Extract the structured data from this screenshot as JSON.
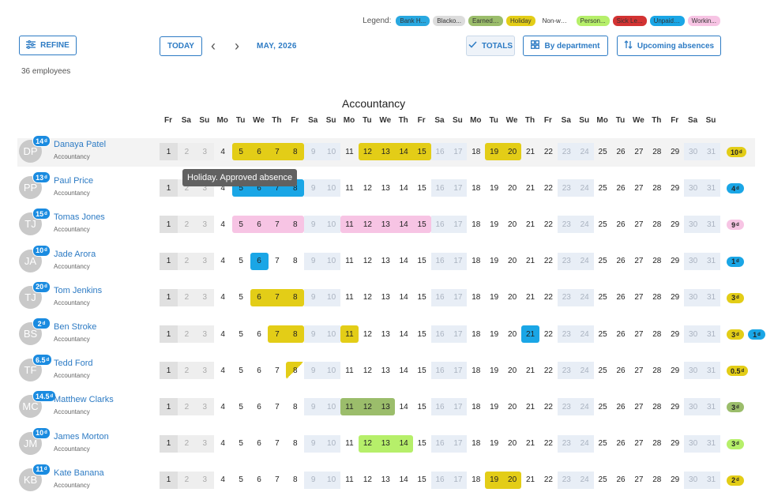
{
  "legend": {
    "label": "Legend:",
    "items": [
      {
        "label": "Bank H...",
        "color": "#29a8e0"
      },
      {
        "label": "Blacko...",
        "color": "#dcdcdc"
      },
      {
        "label": "Earned ...",
        "color": "#9bbd6b"
      },
      {
        "label": "Holiday",
        "color": "#e3cd17"
      },
      {
        "label": "Non-wo...",
        "color": "#ffffff"
      },
      {
        "label": "Person...",
        "color": "#b6ef6a"
      },
      {
        "label": "Sick Le...",
        "color": "#d33333"
      },
      {
        "label": "Unpaid ...",
        "color": "#1aa6e6"
      },
      {
        "label": "Workin...",
        "color": "#f7c4e4"
      }
    ]
  },
  "toolbar": {
    "refine": "REFINE",
    "today": "TODAY",
    "month": "MAY, 2026",
    "totals": "TOTALS",
    "by_department": "By department",
    "upcoming": "Upcoming absences"
  },
  "employee_count": "36 employees",
  "department": "Accountancy",
  "weekdays": [
    "Fr",
    "Sa",
    "Su",
    "Mo",
    "Tu",
    "We",
    "Th",
    "Fr",
    "Sa",
    "Su",
    "Mo",
    "Tu",
    "We",
    "Th",
    "Fr",
    "Sa",
    "Su",
    "Mo",
    "Tu",
    "We",
    "Th",
    "Fr",
    "Sa",
    "Su",
    "Mo",
    "Tu",
    "We",
    "Th",
    "Fr",
    "Sa",
    "Su"
  ],
  "tooltip": "Holiday. Approved absence",
  "colors": {
    "holiday": "#e3cd17",
    "unpaid": "#1aa6e6",
    "working": "#f7c4e4",
    "earned": "#9bbd6b",
    "personal": "#b6ef6a"
  },
  "employees": [
    {
      "initials": "DP",
      "name": "Danaya Patel",
      "dept": "Accountancy",
      "badge": "14",
      "badge_unit": "d",
      "absences": [
        {
          "days": [
            5,
            6,
            7,
            8
          ],
          "type": "holiday"
        },
        {
          "days": [
            12,
            13,
            14,
            15
          ],
          "type": "holiday"
        },
        {
          "days": [
            19,
            20
          ],
          "type": "holiday"
        }
      ],
      "totals": [
        {
          "value": "10",
          "unit": "d",
          "type": "holiday"
        }
      ]
    },
    {
      "initials": "PP",
      "name": "Paul Price",
      "dept": "Accountancy",
      "badge": "13",
      "badge_unit": "d",
      "absences": [
        {
          "days": [
            5,
            6,
            7,
            8
          ],
          "type": "unpaid"
        }
      ],
      "totals": [
        {
          "value": "4",
          "unit": "d",
          "type": "unpaid"
        }
      ]
    },
    {
      "initials": "TJ",
      "name": "Tomas Jones",
      "dept": "Accountancy",
      "badge": "15",
      "badge_unit": "d",
      "absences": [
        {
          "days": [
            5,
            6,
            7,
            8
          ],
          "type": "working"
        },
        {
          "days": [
            11,
            12,
            13,
            14,
            15
          ],
          "type": "working"
        }
      ],
      "totals": [
        {
          "value": "9",
          "unit": "d",
          "type": "working"
        }
      ]
    },
    {
      "initials": "JA",
      "name": "Jade Arora",
      "dept": "Accountancy",
      "badge": "10",
      "badge_unit": "d",
      "absences": [
        {
          "days": [
            6
          ],
          "type": "unpaid"
        }
      ],
      "totals": [
        {
          "value": "1",
          "unit": "d",
          "type": "unpaid"
        }
      ]
    },
    {
      "initials": "TJ",
      "name": "Tom Jenkins",
      "dept": "Accountancy",
      "badge": "20",
      "badge_unit": "d",
      "absences": [
        {
          "days": [
            6,
            7,
            8
          ],
          "type": "holiday"
        }
      ],
      "totals": [
        {
          "value": "3",
          "unit": "d",
          "type": "holiday"
        }
      ]
    },
    {
      "initials": "BS",
      "name": "Ben Stroke",
      "dept": "Accountancy",
      "badge": "2",
      "badge_unit": "d",
      "absences": [
        {
          "days": [
            7,
            8
          ],
          "type": "holiday"
        },
        {
          "days": [
            11
          ],
          "type": "holiday"
        },
        {
          "days": [
            21
          ],
          "type": "unpaid"
        }
      ],
      "totals": [
        {
          "value": "3",
          "unit": "d",
          "type": "holiday"
        },
        {
          "value": "1",
          "unit": "d",
          "type": "unpaid"
        }
      ]
    },
    {
      "initials": "TF",
      "name": "Tedd Ford",
      "dept": "Accountancy",
      "badge": "6.5",
      "badge_unit": "d",
      "absences": [
        {
          "days": [
            8
          ],
          "type": "holiday",
          "half": true
        }
      ],
      "totals": [
        {
          "value": "0.5",
          "unit": "d",
          "type": "holiday"
        }
      ]
    },
    {
      "initials": "MC",
      "name": "Matthew Clarks",
      "dept": "Accountancy",
      "badge": "14.5",
      "badge_unit": "d",
      "absences": [
        {
          "days": [
            11,
            12,
            13
          ],
          "type": "earned"
        }
      ],
      "totals": [
        {
          "value": "3",
          "unit": "d",
          "type": "earned"
        }
      ]
    },
    {
      "initials": "JM",
      "name": "James Morton",
      "dept": "Accountancy",
      "badge": "10",
      "badge_unit": "d",
      "absences": [
        {
          "days": [
            12,
            13,
            14
          ],
          "type": "personal"
        }
      ],
      "totals": [
        {
          "value": "3",
          "unit": "d",
          "type": "personal"
        }
      ]
    },
    {
      "initials": "KB",
      "name": "Kate Banana",
      "dept": "Accountancy",
      "badge": "11",
      "badge_unit": "d",
      "absences": [
        {
          "days": [
            19,
            20
          ],
          "type": "holiday"
        }
      ],
      "totals": [
        {
          "value": "2",
          "unit": "d",
          "type": "holiday"
        }
      ]
    }
  ]
}
